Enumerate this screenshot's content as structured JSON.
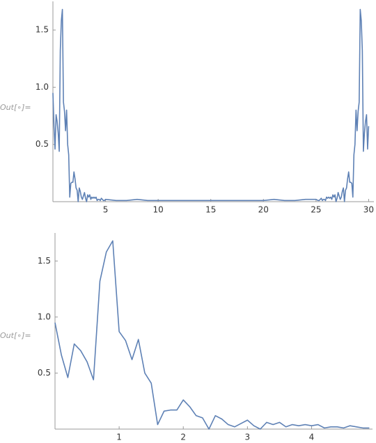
{
  "out_labels": [
    "Out[∘]=",
    "Out[∘]="
  ],
  "chart_data": [
    {
      "type": "line",
      "color": "#5e81b5",
      "x": [
        0,
        0.1,
        0.2,
        0.3,
        0.4,
        0.5,
        0.6,
        0.7,
        0.8,
        0.9,
        1,
        1.1,
        1.2,
        1.3,
        1.4,
        1.5,
        1.6,
        1.7,
        1.8,
        1.9,
        2,
        2.1,
        2.2,
        2.3,
        2.4,
        2.5,
        2.6,
        2.7,
        2.8,
        2.9,
        3,
        3.1,
        3.2,
        3.3,
        3.4,
        3.5,
        3.6,
        3.7,
        3.8,
        3.9,
        4,
        4.1,
        4.2,
        4.3,
        4.4,
        4.5,
        4.6,
        4.7,
        4.8,
        4.9,
        5,
        6,
        7,
        8,
        9,
        10,
        11,
        12,
        13,
        14,
        15,
        16,
        17,
        18,
        19,
        20,
        21,
        22,
        23,
        24,
        25,
        25.2,
        25.3,
        25.4,
        25.5,
        25.6,
        25.7,
        25.8,
        25.9,
        26,
        26.1,
        26.2,
        26.3,
        26.4,
        26.5,
        26.6,
        26.7,
        26.8,
        26.9,
        27,
        27.1,
        27.2,
        27.3,
        27.4,
        27.5,
        27.6,
        27.7,
        27.8,
        27.9,
        28,
        28.1,
        28.2,
        28.3,
        28.4,
        28.5,
        28.6,
        28.7,
        28.8,
        28.9,
        29,
        29.1,
        29.2,
        29.3,
        29.4,
        29.5,
        29.6,
        29.7,
        29.8,
        29.9,
        30
      ],
      "values": [
        0.95,
        0.66,
        0.46,
        0.76,
        0.7,
        0.6,
        0.44,
        1.32,
        1.58,
        1.68,
        0.87,
        0.79,
        0.62,
        0.8,
        0.5,
        0.41,
        0.04,
        0.16,
        0.17,
        0.17,
        0.26,
        0.2,
        0.12,
        0.1,
        0.0,
        0.12,
        0.09,
        0.04,
        0.02,
        0.05,
        0.08,
        0.03,
        0.0,
        0.06,
        0.04,
        0.06,
        0.02,
        0.04,
        0.03,
        0.04,
        0.03,
        0.04,
        0.01,
        0.02,
        0.02,
        0.01,
        0.03,
        0.02,
        0.01,
        0.01,
        0.02,
        0.01,
        0.01,
        0.02,
        0.01,
        0.01,
        0.01,
        0.01,
        0.01,
        0.01,
        0.01,
        0.01,
        0.01,
        0.01,
        0.01,
        0.01,
        0.02,
        0.01,
        0.01,
        0.02,
        0.02,
        0.01,
        0.01,
        0.02,
        0.03,
        0.01,
        0.02,
        0.02,
        0.01,
        0.04,
        0.03,
        0.04,
        0.03,
        0.04,
        0.02,
        0.06,
        0.04,
        0.06,
        0.0,
        0.03,
        0.08,
        0.05,
        0.02,
        0.04,
        0.09,
        0.12,
        0.0,
        0.1,
        0.12,
        0.2,
        0.26,
        0.17,
        0.17,
        0.16,
        0.04,
        0.41,
        0.5,
        0.8,
        0.62,
        0.79,
        0.87,
        1.68,
        1.58,
        1.32,
        0.44,
        0.6,
        0.7,
        0.76,
        0.46,
        0.66
      ],
      "xlim": [
        0,
        30.5
      ],
      "ylim": [
        0,
        1.75
      ],
      "xticks": [
        5,
        10,
        15,
        20,
        25,
        30
      ],
      "yticks": [
        0.5,
        {
          "value": 1.0,
          "label": "1.0"
        },
        1.5
      ]
    },
    {
      "type": "line",
      "color": "#5e81b5",
      "x": [
        0,
        0.1,
        0.2,
        0.3,
        0.4,
        0.5,
        0.6,
        0.7,
        0.8,
        0.9,
        1,
        1.1,
        1.2,
        1.3,
        1.4,
        1.5,
        1.6,
        1.7,
        1.8,
        1.9,
        2,
        2.1,
        2.2,
        2.3,
        2.4,
        2.5,
        2.6,
        2.7,
        2.8,
        2.9,
        3,
        3.1,
        3.2,
        3.3,
        3.4,
        3.5,
        3.6,
        3.7,
        3.8,
        3.9,
        4,
        4.1,
        4.2,
        4.3,
        4.4,
        4.5,
        4.6,
        4.7,
        4.8,
        4.9
      ],
      "values": [
        0.95,
        0.66,
        0.46,
        0.76,
        0.7,
        0.6,
        0.44,
        1.32,
        1.58,
        1.68,
        0.87,
        0.79,
        0.62,
        0.8,
        0.5,
        0.41,
        0.04,
        0.16,
        0.17,
        0.17,
        0.26,
        0.2,
        0.12,
        0.1,
        0.0,
        0.12,
        0.09,
        0.04,
        0.02,
        0.05,
        0.08,
        0.03,
        0.0,
        0.06,
        0.04,
        0.06,
        0.02,
        0.04,
        0.03,
        0.04,
        0.03,
        0.04,
        0.01,
        0.02,
        0.02,
        0.01,
        0.03,
        0.02,
        0.01,
        0.01
      ],
      "xlim": [
        0,
        4.95
      ],
      "ylim": [
        0,
        1.75
      ],
      "xticks": [
        1,
        2,
        3,
        4
      ],
      "yticks": [
        0.5,
        {
          "value": 1.0,
          "label": "1.0"
        },
        1.5
      ]
    }
  ]
}
